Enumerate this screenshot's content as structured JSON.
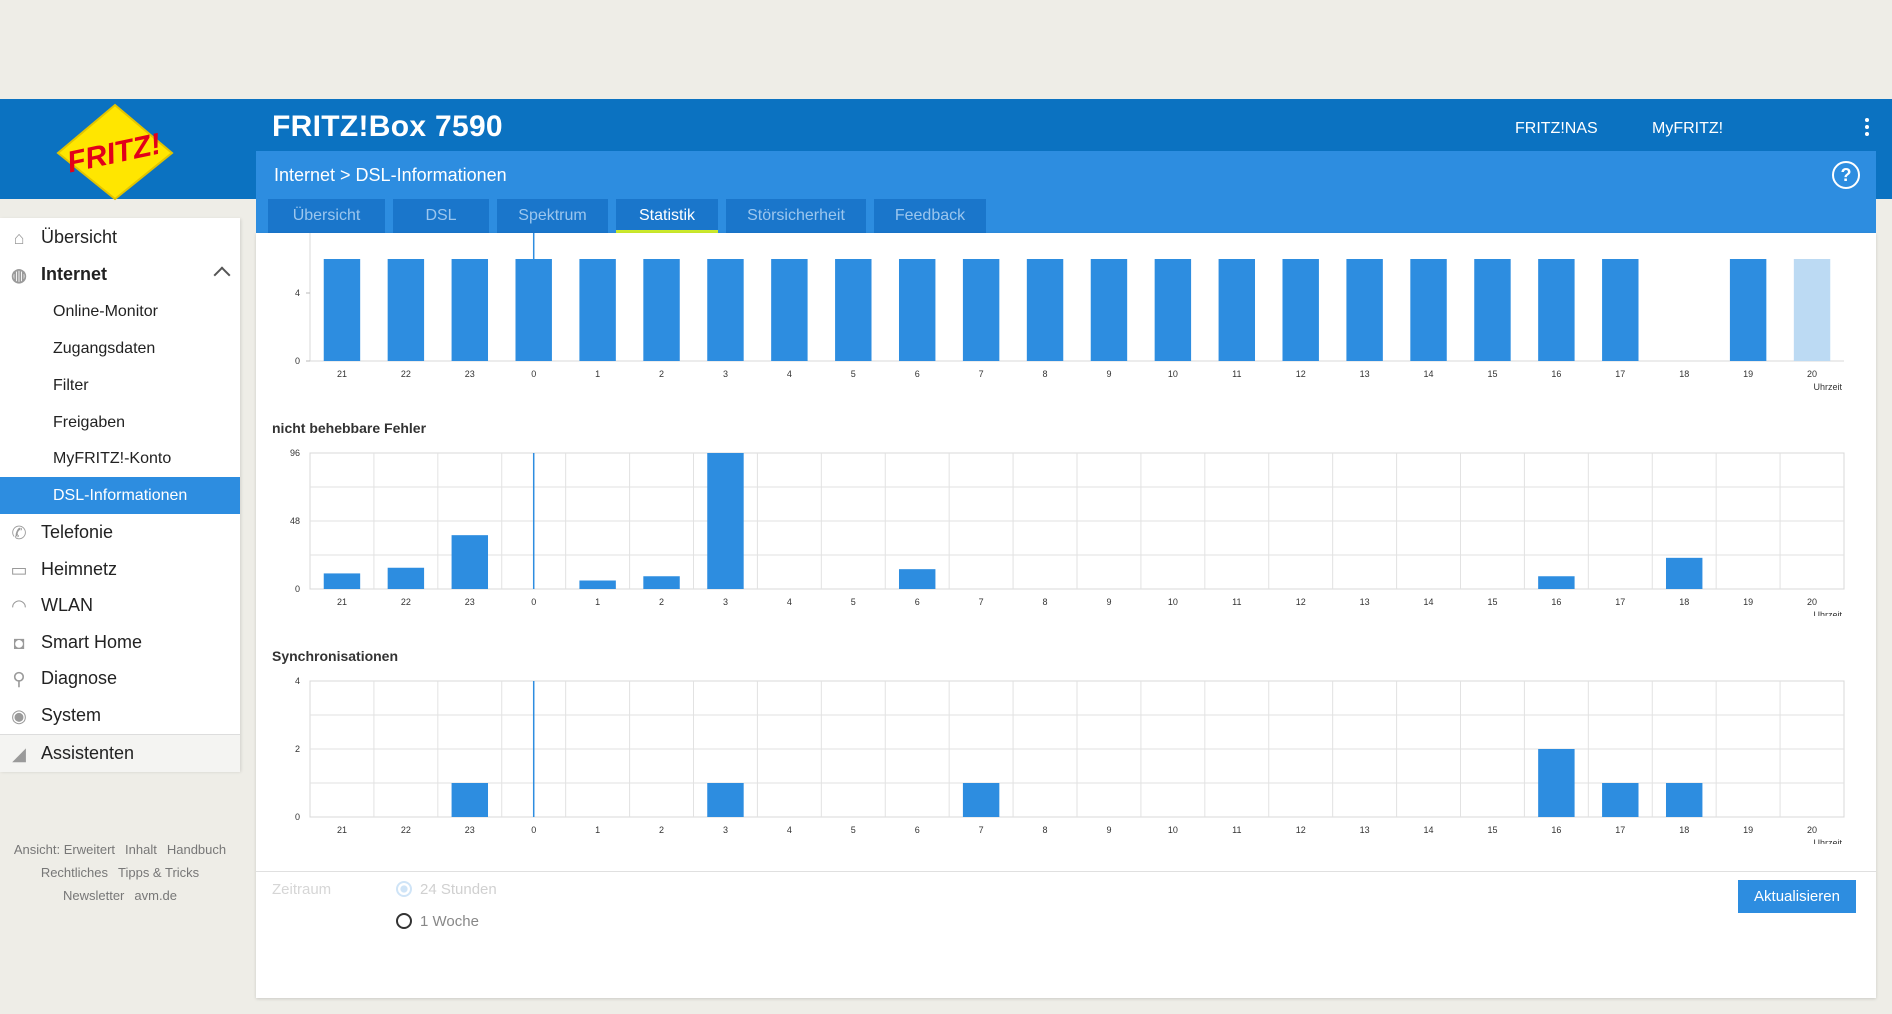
{
  "header": {
    "title": "FRITZ!Box 7590",
    "links": [
      "FRITZ!NAS",
      "MyFRITZ!"
    ],
    "logo_text": "FRITZ!"
  },
  "breadcrumb": "Internet > DSL-Informationen",
  "tabs": [
    {
      "label": "Übersicht",
      "active": false
    },
    {
      "label": "DSL",
      "active": false
    },
    {
      "label": "Spektrum",
      "active": false
    },
    {
      "label": "Statistik",
      "active": true
    },
    {
      "label": "Störsicherheit",
      "active": false
    },
    {
      "label": "Feedback",
      "active": false
    }
  ],
  "sidebar": {
    "items": [
      {
        "label": "Übersicht",
        "icon": "home-icon"
      },
      {
        "label": "Internet",
        "icon": "globe-icon",
        "expanded": true
      },
      {
        "label": "Telefonie",
        "icon": "phone-icon"
      },
      {
        "label": "Heimnetz",
        "icon": "network-icon"
      },
      {
        "label": "WLAN",
        "icon": "wifi-icon"
      },
      {
        "label": "Smart Home",
        "icon": "smart-home-icon"
      },
      {
        "label": "Diagnose",
        "icon": "diagnose-icon"
      },
      {
        "label": "System",
        "icon": "system-icon"
      },
      {
        "label": "Assistenten",
        "icon": "wizard-icon"
      }
    ],
    "subitems": [
      "Online-Monitor",
      "Zugangsdaten",
      "Filter",
      "Freigaben",
      "MyFRITZ!-Konto",
      "DSL-Informationen"
    ],
    "active_subitem": "DSL-Informationen"
  },
  "footer_links": [
    "Ansicht: Erweitert",
    "Inhalt",
    "Handbuch",
    "Rechtliches",
    "Tipps & Tricks",
    "Newsletter",
    "avm.de"
  ],
  "colors": {
    "accent": "#2d8de0",
    "topbar": "#0b72c1",
    "active_tab_underline": "#ccea2b",
    "bar": "#2d8de0",
    "bar_current": "#bcdaf3"
  },
  "chart_data": [
    {
      "type": "bar",
      "title": "",
      "x_unit_label": "Uhrzeit",
      "categories": [
        "21",
        "22",
        "23",
        "0",
        "1",
        "2",
        "3",
        "4",
        "5",
        "6",
        "7",
        "8",
        "9",
        "10",
        "11",
        "12",
        "13",
        "14",
        "15",
        "16",
        "17",
        "18",
        "19",
        "20"
      ],
      "ylim": [
        0,
        6
      ],
      "yticks": [
        0,
        4
      ],
      "values": [
        6,
        6,
        6,
        6,
        6,
        6,
        6,
        6,
        6,
        6,
        6,
        6,
        6,
        6,
        6,
        6,
        6,
        6,
        6,
        6,
        6,
        0,
        6,
        6
      ],
      "highlighted_category": "20",
      "grid": false
    },
    {
      "type": "bar",
      "title": "nicht behebbare Fehler",
      "x_unit_label": "Uhrzeit",
      "categories": [
        "21",
        "22",
        "23",
        "0",
        "1",
        "2",
        "3",
        "4",
        "5",
        "6",
        "7",
        "8",
        "9",
        "10",
        "11",
        "12",
        "13",
        "14",
        "15",
        "16",
        "17",
        "18",
        "19",
        "20"
      ],
      "ylim": [
        0,
        96
      ],
      "yticks": [
        0,
        48,
        96
      ],
      "values": [
        11,
        15,
        38,
        0,
        6,
        9,
        96,
        0,
        0,
        14,
        0,
        0,
        0,
        0,
        0,
        0,
        0,
        0,
        0,
        9,
        0,
        22,
        0,
        0
      ],
      "grid": true
    },
    {
      "type": "bar",
      "title": "Synchronisationen",
      "x_unit_label": "Uhrzeit",
      "categories": [
        "21",
        "22",
        "23",
        "0",
        "1",
        "2",
        "3",
        "4",
        "5",
        "6",
        "7",
        "8",
        "9",
        "10",
        "11",
        "12",
        "13",
        "14",
        "15",
        "16",
        "17",
        "18",
        "19",
        "20"
      ],
      "ylim": [
        0,
        4
      ],
      "yticks": [
        0,
        2,
        4
      ],
      "values": [
        0,
        0,
        1,
        0,
        0,
        0,
        1,
        0,
        0,
        0,
        1,
        0,
        0,
        0,
        0,
        0,
        0,
        0,
        0,
        2,
        1,
        1,
        0,
        0
      ],
      "grid": true
    }
  ],
  "form": {
    "label": "Zeitraum",
    "options": [
      {
        "label": "24 Stunden",
        "selected": true
      },
      {
        "label": "1 Woche",
        "selected": false
      }
    ],
    "button": "Aktualisieren"
  }
}
